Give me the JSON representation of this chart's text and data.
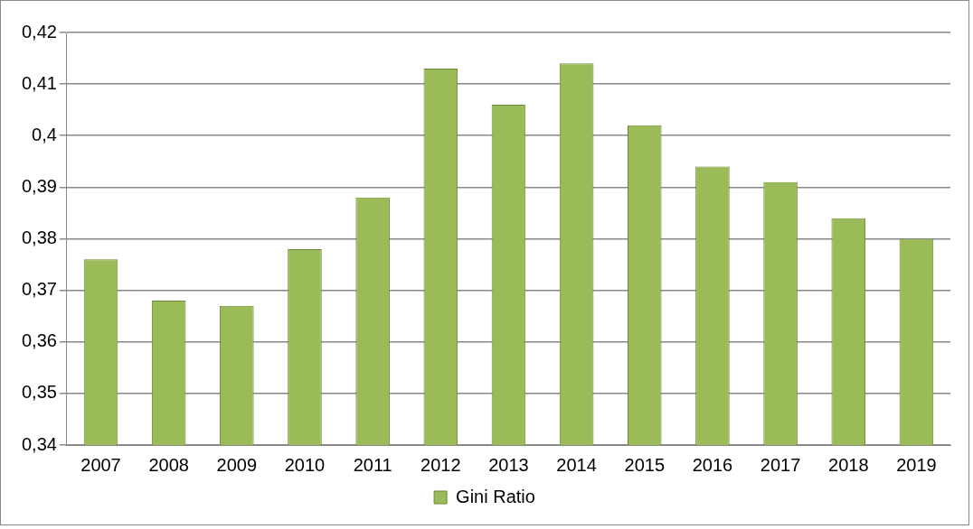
{
  "chart_data": {
    "type": "bar",
    "categories": [
      "2007",
      "2008",
      "2009",
      "2010",
      "2011",
      "2012",
      "2013",
      "2014",
      "2015",
      "2016",
      "2017",
      "2018",
      "2019"
    ],
    "series": [
      {
        "name": "Gini Ratio",
        "color": "#9bbb59",
        "values": [
          0.376,
          0.368,
          0.367,
          0.378,
          0.388,
          0.413,
          0.406,
          0.414,
          0.402,
          0.394,
          0.391,
          0.384,
          0.38
        ]
      }
    ],
    "ylim": [
      0.34,
      0.42
    ],
    "yticks": [
      {
        "value": 0.34,
        "label": "0,34"
      },
      {
        "value": 0.35,
        "label": "0,35"
      },
      {
        "value": 0.36,
        "label": "0,36"
      },
      {
        "value": 0.37,
        "label": "0,37"
      },
      {
        "value": 0.38,
        "label": "0,38"
      },
      {
        "value": 0.39,
        "label": "0,39"
      },
      {
        "value": 0.4,
        "label": "0,4"
      },
      {
        "value": 0.41,
        "label": "0,41"
      },
      {
        "value": 0.42,
        "label": "0,42"
      }
    ],
    "grid": "y",
    "legend": "bottom"
  }
}
